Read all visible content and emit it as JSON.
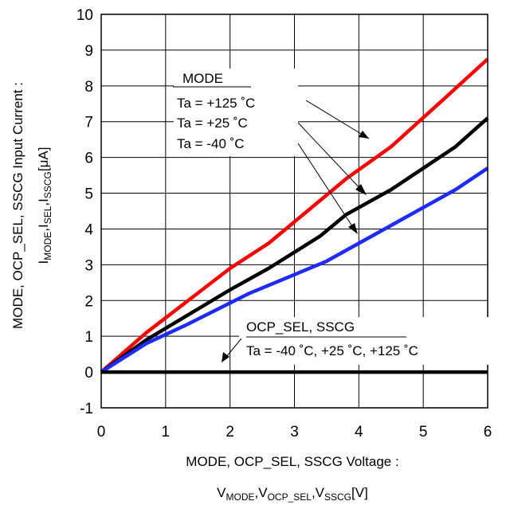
{
  "chart_data": {
    "type": "line",
    "xlabel_line1": "MODE, OCP_SEL, SSCG Voltage :",
    "xlabel_line2_parts": [
      "V",
      "MODE",
      ",V",
      "OCP_SEL",
      ",V",
      "SSCG",
      "[V]"
    ],
    "ylabel_line1": "MODE, OCP_SEL, SSCG Input Current :",
    "ylabel_line2_parts": [
      "I",
      "MODE",
      ",I",
      "SEL",
      ",I",
      "SSCG",
      "[μA]"
    ],
    "xlim": [
      0,
      6
    ],
    "ylim": [
      -1,
      10
    ],
    "x_ticks": [
      "0",
      "1",
      "2",
      "3",
      "4",
      "5",
      "6"
    ],
    "y_ticks": [
      "-1",
      "0",
      "1",
      "2",
      "3",
      "4",
      "5",
      "6",
      "7",
      "8",
      "9",
      "10"
    ],
    "grid": true,
    "series": [
      {
        "color": "#ff0000",
        "x": [
          0,
          0.7,
          2,
          2.6,
          3.8,
          4.5,
          5.3,
          6
        ],
        "y": [
          0,
          1.1,
          2.9,
          3.6,
          5.4,
          6.3,
          7.6,
          8.75
        ]
      },
      {
        "color": "#000000",
        "x": [
          0,
          0.7,
          2,
          2.6,
          3.4,
          3.8,
          4.5,
          5.5,
          6
        ],
        "y": [
          0,
          0.9,
          2.3,
          2.9,
          3.8,
          4.4,
          5.1,
          6.3,
          7.1
        ]
      },
      {
        "color": "#1f2aff",
        "x": [
          0,
          0.7,
          1.3,
          2.3,
          3.5,
          4.5,
          5.5,
          6
        ],
        "y": [
          0,
          0.8,
          1.3,
          2.2,
          3.1,
          4.1,
          5.1,
          5.7
        ]
      },
      {
        "color": "#000000",
        "x": [
          0,
          6
        ],
        "y": [
          0,
          0
        ]
      }
    ],
    "annotations": {
      "mode_group": {
        "title": "MODE",
        "lines": [
          "Ta = +125 ˚C",
          "Ta = +25 ˚C",
          "Ta = -40 ˚C"
        ]
      },
      "ocp_group": {
        "title": "OCP_SEL, SSCG",
        "line": "Ta = -40 ˚C, +25 ˚C, +125 ˚C"
      }
    }
  }
}
